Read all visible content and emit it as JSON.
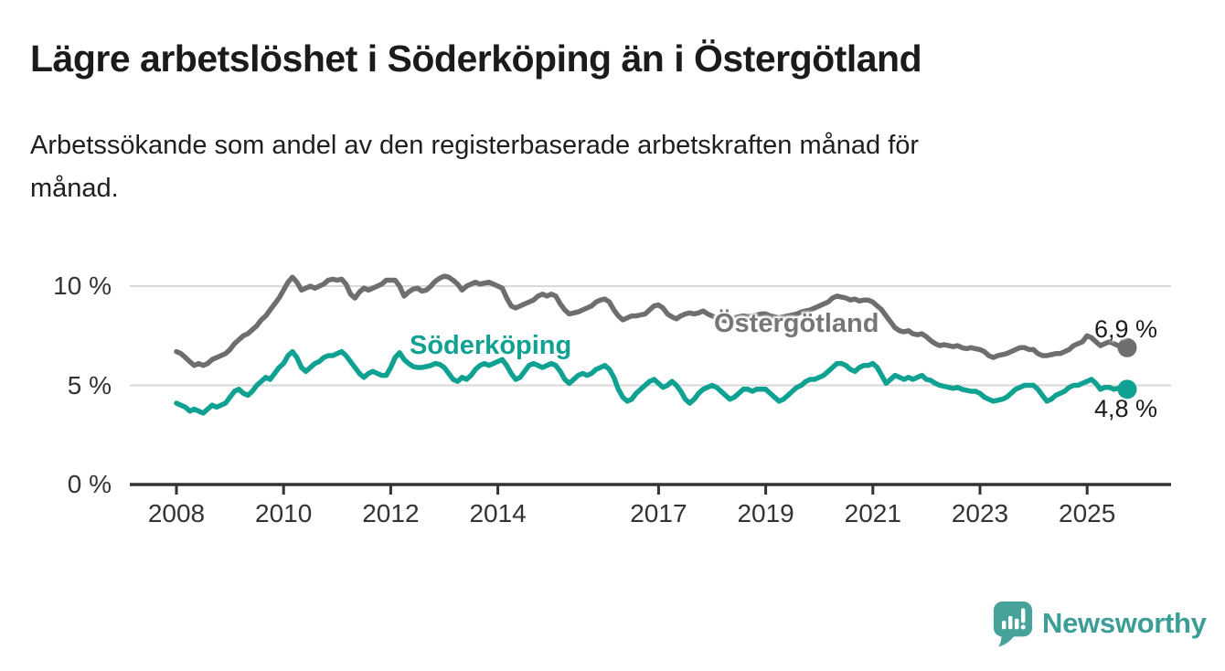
{
  "header": {
    "title": "Lägre arbetslöshet i Söderköping än i Östergötland",
    "subtitle_lines": [
      "Arbetssökande som andel av den registerbaserade arbetskraften månad för",
      "månad."
    ]
  },
  "chart_data": {
    "type": "line",
    "unit": "%",
    "x_start": "2008-01",
    "x_end": "2025-10",
    "points_interval": "monthly",
    "x_tick_years": [
      2008,
      2010,
      2012,
      2014,
      2017,
      2019,
      2021,
      2023,
      2025
    ],
    "y_ticks": [
      {
        "label": "10 %",
        "value": 10
      },
      {
        "label": "5 %",
        "value": 5
      },
      {
        "label": "0 %",
        "value": 0
      }
    ],
    "ylim": [
      0,
      10.9
    ],
    "grid_color": "#d9d9d9",
    "axis_color": "#333333",
    "legend_position": "inline-labels",
    "series": [
      {
        "name": "Östergötland",
        "color": "#6e6e6e",
        "end_label": "6,9 %",
        "end_value": 6.9,
        "values": [
          6.7,
          6.6,
          6.4,
          6.2,
          6.0,
          6.1,
          6.0,
          6.1,
          6.3,
          6.4,
          6.5,
          6.6,
          6.8,
          7.1,
          7.3,
          7.5,
          7.6,
          7.8,
          8.0,
          8.3,
          8.5,
          8.8,
          9.1,
          9.4,
          9.8,
          10.2,
          10.45,
          10.2,
          9.8,
          9.9,
          10.0,
          9.9,
          10.0,
          10.1,
          10.3,
          10.35,
          10.3,
          10.35,
          10.1,
          9.6,
          9.4,
          9.7,
          9.9,
          9.8,
          9.9,
          10.0,
          10.1,
          10.3,
          10.3,
          10.3,
          10.0,
          9.5,
          9.7,
          9.85,
          9.9,
          9.75,
          9.8,
          10.0,
          10.25,
          10.4,
          10.5,
          10.45,
          10.3,
          10.1,
          9.8,
          10.0,
          10.1,
          10.2,
          10.1,
          10.15,
          10.2,
          10.1,
          10.0,
          9.9,
          9.4,
          9.0,
          8.9,
          9.0,
          9.1,
          9.2,
          9.3,
          9.5,
          9.6,
          9.5,
          9.6,
          9.5,
          9.1,
          8.8,
          8.6,
          8.65,
          8.7,
          8.8,
          8.9,
          9.0,
          9.2,
          9.3,
          9.35,
          9.2,
          8.8,
          8.5,
          8.3,
          8.4,
          8.5,
          8.5,
          8.55,
          8.6,
          8.8,
          9.0,
          9.05,
          8.9,
          8.6,
          8.45,
          8.35,
          8.5,
          8.6,
          8.65,
          8.6,
          8.65,
          8.75,
          8.6,
          8.5,
          8.4,
          8.3,
          8.25,
          8.3,
          8.4,
          8.45,
          8.5,
          8.45,
          8.5,
          8.55,
          8.6,
          8.6,
          8.5,
          8.45,
          8.4,
          8.45,
          8.5,
          8.55,
          8.6,
          8.7,
          8.75,
          8.8,
          8.9,
          9.0,
          9.1,
          9.2,
          9.4,
          9.5,
          9.45,
          9.4,
          9.3,
          9.35,
          9.25,
          9.3,
          9.3,
          9.2,
          9.0,
          8.8,
          8.5,
          8.2,
          7.9,
          7.75,
          7.7,
          7.75,
          7.6,
          7.55,
          7.6,
          7.45,
          7.25,
          7.1,
          7.0,
          7.05,
          7.0,
          6.95,
          7.0,
          6.9,
          6.85,
          6.9,
          6.85,
          6.8,
          6.7,
          6.5,
          6.4,
          6.5,
          6.55,
          6.6,
          6.7,
          6.8,
          6.9,
          6.9,
          6.8,
          6.8,
          6.6,
          6.5,
          6.5,
          6.55,
          6.6,
          6.6,
          6.7,
          6.8,
          7.0,
          7.1,
          7.2,
          7.5,
          7.4,
          7.2,
          7.0,
          7.1,
          7.2,
          7.1,
          7.0,
          6.9,
          6.9
        ]
      },
      {
        "name": "Söderköping",
        "color": "#0fa292",
        "end_label": "4,8 %",
        "end_value": 4.8,
        "values": [
          4.1,
          4.0,
          3.9,
          3.7,
          3.8,
          3.7,
          3.6,
          3.8,
          4.0,
          3.9,
          4.0,
          4.1,
          4.4,
          4.7,
          4.8,
          4.6,
          4.5,
          4.7,
          5.0,
          5.2,
          5.4,
          5.3,
          5.6,
          5.9,
          6.1,
          6.5,
          6.7,
          6.4,
          5.9,
          5.7,
          5.9,
          6.1,
          6.2,
          6.4,
          6.5,
          6.5,
          6.6,
          6.7,
          6.5,
          6.2,
          5.9,
          5.6,
          5.4,
          5.6,
          5.7,
          5.6,
          5.5,
          5.5,
          5.9,
          6.4,
          6.65,
          6.3,
          6.1,
          5.95,
          5.9,
          5.9,
          5.95,
          6.0,
          6.1,
          6.05,
          5.9,
          5.6,
          5.3,
          5.2,
          5.4,
          5.3,
          5.5,
          5.8,
          6.0,
          6.1,
          6.0,
          6.1,
          6.2,
          6.3,
          6.0,
          5.6,
          5.3,
          5.4,
          5.7,
          6.0,
          6.1,
          6.0,
          5.9,
          6.0,
          6.1,
          6.0,
          5.7,
          5.3,
          5.1,
          5.3,
          5.5,
          5.6,
          5.5,
          5.6,
          5.8,
          5.9,
          6.0,
          5.8,
          5.4,
          4.8,
          4.4,
          4.2,
          4.3,
          4.6,
          4.8,
          5.0,
          5.2,
          5.3,
          5.1,
          4.9,
          5.0,
          5.2,
          5.0,
          4.7,
          4.3,
          4.1,
          4.3,
          4.6,
          4.8,
          4.9,
          5.0,
          4.9,
          4.7,
          4.5,
          4.3,
          4.4,
          4.6,
          4.8,
          4.8,
          4.7,
          4.8,
          4.8,
          4.8,
          4.6,
          4.4,
          4.2,
          4.3,
          4.5,
          4.7,
          4.9,
          5.0,
          5.2,
          5.3,
          5.3,
          5.4,
          5.5,
          5.7,
          5.9,
          6.1,
          6.1,
          6.0,
          5.8,
          5.7,
          5.9,
          6.0,
          6.0,
          6.1,
          5.9,
          5.5,
          5.1,
          5.3,
          5.5,
          5.4,
          5.3,
          5.4,
          5.3,
          5.4,
          5.5,
          5.3,
          5.25,
          5.1,
          5.0,
          4.95,
          4.9,
          4.85,
          4.9,
          4.8,
          4.75,
          4.7,
          4.7,
          4.6,
          4.4,
          4.3,
          4.2,
          4.25,
          4.3,
          4.4,
          4.6,
          4.8,
          4.9,
          5.0,
          5.0,
          5.0,
          4.8,
          4.5,
          4.2,
          4.3,
          4.5,
          4.6,
          4.7,
          4.9,
          5.0,
          5.0,
          5.1,
          5.2,
          5.3,
          5.1,
          4.8,
          4.9,
          4.9,
          4.8,
          4.85,
          4.8,
          4.8
        ]
      }
    ]
  },
  "footer": {
    "brand": "Newsworthy",
    "brand_color": "#3a9e96",
    "icon_color": "#47a39a"
  }
}
